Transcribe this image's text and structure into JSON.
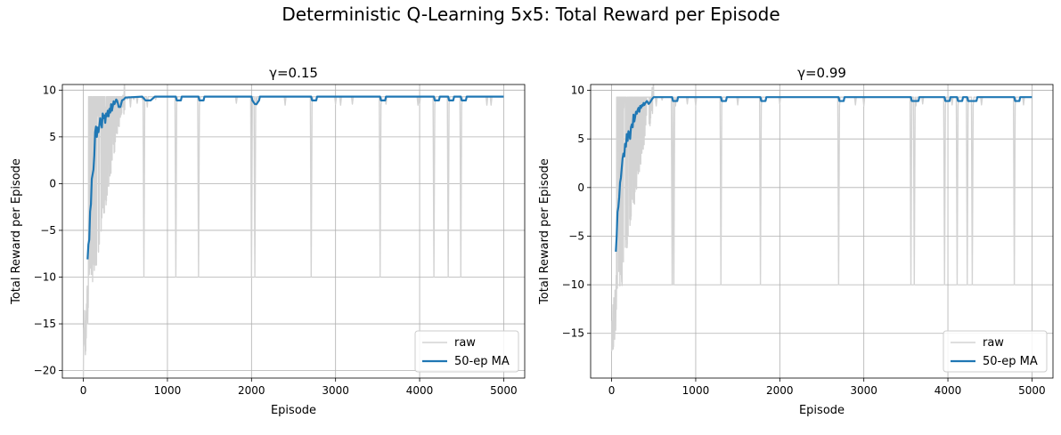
{
  "suptitle": "Deterministic Q-Learning 5x5: Total Reward per Episode",
  "colors": {
    "raw": "#d3d3d3",
    "ma": "#1f77b4",
    "grid": "#b0b0b0",
    "axis": "#000000"
  },
  "chart_data": [
    {
      "type": "line",
      "title": "γ=0.15",
      "xlabel": "Episode",
      "ylabel": "Total Reward per Episode",
      "xlim": [
        -250,
        5250
      ],
      "ylim": [
        -20.8,
        10.6
      ],
      "xticks": [
        0,
        1000,
        2000,
        3000,
        4000,
        5000
      ],
      "xtick_labels": [
        "0",
        "1000",
        "2000",
        "3000",
        "4000",
        "5000"
      ],
      "yticks": [
        -20,
        -15,
        -10,
        -5,
        0,
        5,
        10
      ],
      "ytick_labels": [
        "−20",
        "−15",
        "−10",
        "−5",
        "0",
        "5",
        "10"
      ],
      "grid": true,
      "legend_position": "lower right",
      "series": [
        {
          "name": "raw",
          "color": "#d3d3d3",
          "episodes": 5000,
          "early_phase": {
            "start": -19.5,
            "end": 9.3,
            "until": 500
          },
          "plateau": 9.3,
          "dips": [
            [
              520,
              9.0
            ],
            [
              560,
              8.2
            ],
            [
              600,
              9.0
            ],
            [
              640,
              8.6
            ],
            [
              700,
              9.0
            ],
            [
              720,
              -10.0
            ],
            [
              760,
              8.2
            ],
            [
              860,
              9.0
            ],
            [
              1100,
              -10.0
            ],
            [
              1110,
              8.5
            ],
            [
              1370,
              -10.0
            ],
            [
              1380,
              8.3
            ],
            [
              1820,
              8.6
            ],
            [
              2000,
              -10.0
            ],
            [
              2040,
              -10.0
            ],
            [
              2060,
              8.4
            ],
            [
              2400,
              8.4
            ],
            [
              2710,
              -10.0
            ],
            [
              2720,
              8.6
            ],
            [
              3000,
              8.5
            ],
            [
              3060,
              8.4
            ],
            [
              3200,
              8.5
            ],
            [
              3530,
              -10.0
            ],
            [
              3540,
              8.4
            ],
            [
              3600,
              8.5
            ],
            [
              3980,
              8.4
            ],
            [
              4000,
              8.5
            ],
            [
              4170,
              -10.0
            ],
            [
              4180,
              8.4
            ],
            [
              4340,
              -10.0
            ],
            [
              4350,
              8.5
            ],
            [
              4490,
              -10.0
            ],
            [
              4500,
              8.4
            ],
            [
              4800,
              8.4
            ],
            [
              4850,
              8.4
            ]
          ]
        },
        {
          "name": "50-ep MA",
          "color": "#1f77b4",
          "points": [
            [
              50,
              -8.1
            ],
            [
              60,
              -6.5
            ],
            [
              70,
              -6.0
            ],
            [
              80,
              -3.0
            ],
            [
              90,
              -2.2
            ],
            [
              100,
              0.5
            ],
            [
              110,
              1.0
            ],
            [
              120,
              1.5
            ],
            [
              130,
              3.0
            ],
            [
              140,
              5.5
            ],
            [
              150,
              6.1
            ],
            [
              160,
              5.0
            ],
            [
              170,
              6.0
            ],
            [
              180,
              5.5
            ],
            [
              190,
              6.2
            ],
            [
              200,
              7.0
            ],
            [
              210,
              6.5
            ],
            [
              220,
              6.0
            ],
            [
              230,
              7.5
            ],
            [
              240,
              7.0
            ],
            [
              250,
              7.3
            ],
            [
              260,
              6.5
            ],
            [
              270,
              7.5
            ],
            [
              280,
              7.2
            ],
            [
              290,
              7.8
            ],
            [
              300,
              7.2
            ],
            [
              310,
              8.0
            ],
            [
              320,
              7.6
            ],
            [
              330,
              8.5
            ],
            [
              340,
              7.8
            ],
            [
              350,
              8.3
            ],
            [
              360,
              8.8
            ],
            [
              370,
              8.5
            ],
            [
              380,
              8.7
            ],
            [
              390,
              9.0
            ],
            [
              400,
              8.9
            ],
            [
              410,
              8.6
            ],
            [
              420,
              8.2
            ],
            [
              440,
              8.2
            ],
            [
              460,
              8.9
            ],
            [
              480,
              9.0
            ],
            [
              500,
              9.2
            ],
            [
              700,
              9.3
            ],
            [
              740,
              8.9
            ],
            [
              800,
              8.9
            ],
            [
              850,
              9.3
            ],
            [
              1100,
              9.3
            ],
            [
              1110,
              8.9
            ],
            [
              1160,
              8.9
            ],
            [
              1170,
              9.3
            ],
            [
              1370,
              9.3
            ],
            [
              1380,
              8.9
            ],
            [
              1430,
              8.9
            ],
            [
              1440,
              9.3
            ],
            [
              2000,
              9.3
            ],
            [
              2010,
              8.9
            ],
            [
              2040,
              8.5
            ],
            [
              2060,
              8.5
            ],
            [
              2090,
              8.9
            ],
            [
              2100,
              9.3
            ],
            [
              2710,
              9.3
            ],
            [
              2720,
              8.9
            ],
            [
              2770,
              8.9
            ],
            [
              2780,
              9.3
            ],
            [
              3530,
              9.3
            ],
            [
              3540,
              8.9
            ],
            [
              3590,
              8.9
            ],
            [
              3600,
              9.3
            ],
            [
              4170,
              9.3
            ],
            [
              4180,
              8.9
            ],
            [
              4230,
              8.9
            ],
            [
              4240,
              9.3
            ],
            [
              4340,
              9.3
            ],
            [
              4350,
              8.9
            ],
            [
              4400,
              8.9
            ],
            [
              4410,
              9.3
            ],
            [
              4490,
              9.3
            ],
            [
              4500,
              8.9
            ],
            [
              4550,
              8.9
            ],
            [
              4560,
              9.3
            ],
            [
              5000,
              9.3
            ]
          ]
        }
      ]
    },
    {
      "type": "line",
      "title": "γ=0.99",
      "xlabel": "Episode",
      "ylabel": "Total Reward per Episode",
      "xlim": [
        -250,
        5250
      ],
      "ylim": [
        -19.6,
        10.6
      ],
      "xticks": [
        0,
        1000,
        2000,
        3000,
        4000,
        5000
      ],
      "xtick_labels": [
        "0",
        "1000",
        "2000",
        "3000",
        "4000",
        "5000"
      ],
      "yticks": [
        -15,
        -10,
        -5,
        0,
        5,
        10
      ],
      "ytick_labels": [
        "−15",
        "−10",
        "−5",
        "0",
        "5",
        "10"
      ],
      "grid": true,
      "legend_position": "lower right",
      "series": [
        {
          "name": "raw",
          "color": "#d3d3d3",
          "episodes": 5000,
          "early_phase": {
            "start": -18.3,
            "end": 9.3,
            "until": 500
          },
          "plateau": 9.3,
          "dips": [
            [
              530,
              8.4
            ],
            [
              600,
              9.0
            ],
            [
              720,
              -10.0
            ],
            [
              740,
              -10.0
            ],
            [
              760,
              8.4
            ],
            [
              900,
              8.6
            ],
            [
              1000,
              8.4
            ],
            [
              1300,
              -10.0
            ],
            [
              1310,
              8.5
            ],
            [
              1500,
              8.5
            ],
            [
              1770,
              -10.0
            ],
            [
              1780,
              8.4
            ],
            [
              2000,
              8.6
            ],
            [
              2700,
              -10.0
            ],
            [
              2710,
              8.4
            ],
            [
              2900,
              8.5
            ],
            [
              3000,
              8.4
            ],
            [
              3560,
              -10.0
            ],
            [
              3600,
              -10.0
            ],
            [
              3620,
              8.4
            ],
            [
              3700,
              8.6
            ],
            [
              3960,
              -10.0
            ],
            [
              3970,
              8.4
            ],
            [
              4050,
              8.5
            ],
            [
              4110,
              -10.0
            ],
            [
              4120,
              8.4
            ],
            [
              4230,
              -10.0
            ],
            [
              4240,
              8.5
            ],
            [
              4290,
              -10.0
            ],
            [
              4300,
              8.4
            ],
            [
              4400,
              8.5
            ],
            [
              4790,
              -10.0
            ],
            [
              4800,
              8.4
            ],
            [
              4900,
              8.5
            ]
          ]
        },
        {
          "name": "50-ep MA",
          "color": "#1f77b4",
          "points": [
            [
              50,
              -6.6
            ],
            [
              60,
              -5.0
            ],
            [
              70,
              -2.5
            ],
            [
              80,
              -2.0
            ],
            [
              90,
              -1.0
            ],
            [
              100,
              0.5
            ],
            [
              110,
              1.0
            ],
            [
              120,
              2.0
            ],
            [
              130,
              3.0
            ],
            [
              140,
              3.5
            ],
            [
              150,
              3.2
            ],
            [
              160,
              4.5
            ],
            [
              170,
              4.2
            ],
            [
              180,
              5.5
            ],
            [
              190,
              4.8
            ],
            [
              200,
              5.8
            ],
            [
              210,
              5.5
            ],
            [
              220,
              5.0
            ],
            [
              230,
              6.2
            ],
            [
              240,
              6.5
            ],
            [
              250,
              6.2
            ],
            [
              260,
              7.5
            ],
            [
              270,
              6.8
            ],
            [
              280,
              7.3
            ],
            [
              290,
              7.8
            ],
            [
              300,
              7.6
            ],
            [
              310,
              8.0
            ],
            [
              320,
              8.2
            ],
            [
              330,
              7.8
            ],
            [
              340,
              8.4
            ],
            [
              350,
              8.2
            ],
            [
              360,
              8.5
            ],
            [
              370,
              8.4
            ],
            [
              380,
              8.7
            ],
            [
              390,
              8.5
            ],
            [
              400,
              8.7
            ],
            [
              420,
              8.9
            ],
            [
              440,
              8.6
            ],
            [
              460,
              8.8
            ],
            [
              480,
              9.1
            ],
            [
              500,
              9.3
            ],
            [
              720,
              9.3
            ],
            [
              730,
              8.9
            ],
            [
              780,
              8.9
            ],
            [
              790,
              9.3
            ],
            [
              1300,
              9.3
            ],
            [
              1310,
              8.9
            ],
            [
              1360,
              8.9
            ],
            [
              1370,
              9.3
            ],
            [
              1770,
              9.3
            ],
            [
              1780,
              8.9
            ],
            [
              1830,
              8.9
            ],
            [
              1840,
              9.3
            ],
            [
              2700,
              9.3
            ],
            [
              2710,
              8.9
            ],
            [
              2760,
              8.9
            ],
            [
              2770,
              9.3
            ],
            [
              3560,
              9.3
            ],
            [
              3570,
              8.9
            ],
            [
              3650,
              8.9
            ],
            [
              3660,
              9.3
            ],
            [
              3960,
              9.3
            ],
            [
              3970,
              8.9
            ],
            [
              4020,
              8.9
            ],
            [
              4030,
              9.3
            ],
            [
              4110,
              9.3
            ],
            [
              4120,
              8.9
            ],
            [
              4170,
              8.9
            ],
            [
              4180,
              9.3
            ],
            [
              4230,
              9.3
            ],
            [
              4240,
              8.9
            ],
            [
              4340,
              8.9
            ],
            [
              4350,
              9.3
            ],
            [
              4790,
              9.3
            ],
            [
              4800,
              8.9
            ],
            [
              4850,
              8.9
            ],
            [
              4860,
              9.3
            ],
            [
              5000,
              9.3
            ]
          ]
        }
      ]
    }
  ]
}
